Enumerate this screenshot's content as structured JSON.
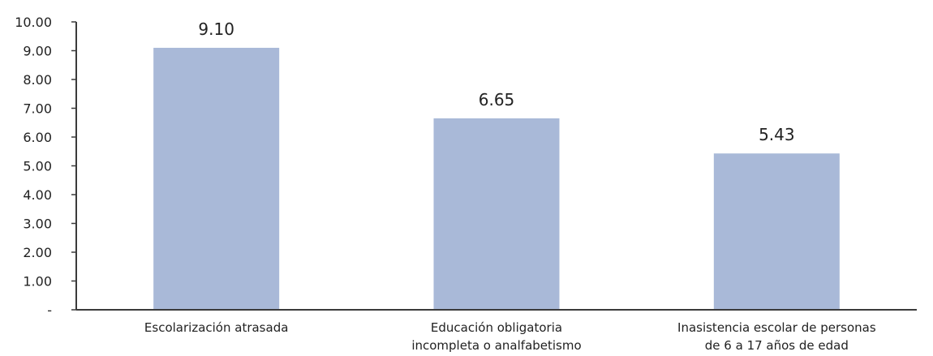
{
  "chart_data": {
    "type": "bar",
    "categories": [
      [
        "Escolarización atrasada"
      ],
      [
        "Educación obligatoria",
        "incompleta o analfabetismo"
      ],
      [
        "Inasistencia escolar de personas",
        "de 6 a 17 años de edad"
      ]
    ],
    "values": [
      9.1,
      6.65,
      5.43
    ],
    "value_labels": [
      "9.10",
      "6.65",
      "5.43"
    ],
    "ylim": [
      0,
      10
    ],
    "yticks": [
      0,
      1,
      2,
      3,
      4,
      5,
      6,
      7,
      8,
      9,
      10
    ],
    "ytick_labels": [
      "-",
      "1.00",
      "2.00",
      "3.00",
      "4.00",
      "5.00",
      "6.00",
      "7.00",
      "8.00",
      "9.00",
      "10.00"
    ],
    "title": "",
    "xlabel": "",
    "ylabel": "",
    "grid": false,
    "bar_color": "#a9b9d8",
    "axis_color": "#3b3b3b"
  }
}
